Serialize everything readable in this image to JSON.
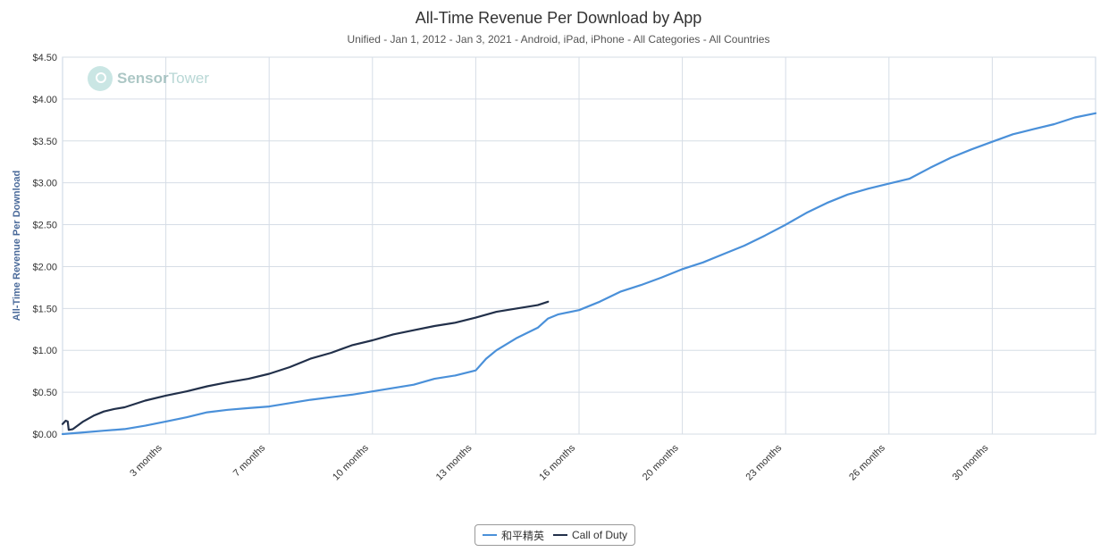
{
  "title": "All-Time Revenue Per Download by App",
  "subtitle": "Unified - Jan 1, 2012 - Jan 3, 2021 - Android, iPad, iPhone - All Categories - All Countries",
  "watermark": {
    "brand_bold": "Sensor",
    "brand_light": "Tower"
  },
  "chart_data": {
    "type": "line",
    "title": "All-Time Revenue Per Download by App",
    "ylabel": "All-Time Revenue Per Download",
    "xlabel": "",
    "ylim": [
      0,
      4.5
    ],
    "y_ticks": [
      "$0.00",
      "$0.50",
      "$1.00",
      "$1.50",
      "$2.00",
      "$2.50",
      "$3.00",
      "$3.50",
      "$4.00",
      "$4.50"
    ],
    "y_tick_values": [
      0,
      0.5,
      1.0,
      1.5,
      2.0,
      2.5,
      3.0,
      3.5,
      4.0,
      4.5
    ],
    "xlim": [
      0,
      100
    ],
    "x_ticks": [
      "3 months",
      "7 months",
      "10 months",
      "13 months",
      "16 months",
      "20 months",
      "23 months",
      "26 months",
      "30 months"
    ],
    "x_tick_values": [
      10,
      20,
      30,
      40,
      50,
      60,
      70,
      80,
      90
    ],
    "grid": true,
    "legend_position": "bottom-center",
    "series": [
      {
        "name": "和平精英",
        "color": "#4a90d9",
        "x": [
          0,
          2,
          4,
          6,
          8,
          10,
          12,
          14,
          16,
          18,
          20,
          22,
          24,
          26,
          28,
          30,
          32,
          34,
          36,
          38,
          40,
          41,
          42,
          44,
          46,
          47,
          48,
          50,
          52,
          54,
          56,
          58,
          60,
          62,
          64,
          66,
          68,
          70,
          72,
          74,
          76,
          78,
          80,
          82,
          84,
          86,
          88,
          90,
          92,
          94,
          96,
          98,
          100
        ],
        "values": [
          0.0,
          0.02,
          0.04,
          0.06,
          0.1,
          0.15,
          0.2,
          0.26,
          0.29,
          0.31,
          0.33,
          0.37,
          0.41,
          0.44,
          0.47,
          0.51,
          0.55,
          0.59,
          0.66,
          0.7,
          0.76,
          0.9,
          1.0,
          1.15,
          1.27,
          1.38,
          1.43,
          1.48,
          1.58,
          1.7,
          1.78,
          1.87,
          1.97,
          2.05,
          2.15,
          2.25,
          2.37,
          2.5,
          2.64,
          2.76,
          2.86,
          2.93,
          2.99,
          3.05,
          3.18,
          3.3,
          3.4,
          3.49,
          3.58,
          3.64,
          3.7,
          3.78,
          3.83
        ]
      },
      {
        "name": "Call of Duty",
        "color": "#22304a",
        "x": [
          0,
          0.3,
          0.5,
          0.6,
          1,
          2,
          3,
          4,
          5,
          6,
          8,
          10,
          12,
          14,
          16,
          18,
          20,
          22,
          24,
          26,
          28,
          30,
          32,
          34,
          36,
          38,
          40,
          42,
          44,
          46,
          47
        ],
        "values": [
          0.12,
          0.16,
          0.15,
          0.05,
          0.06,
          0.15,
          0.22,
          0.27,
          0.3,
          0.32,
          0.4,
          0.46,
          0.51,
          0.57,
          0.62,
          0.66,
          0.72,
          0.8,
          0.9,
          0.97,
          1.06,
          1.12,
          1.19,
          1.24,
          1.29,
          1.33,
          1.39,
          1.46,
          1.5,
          1.54,
          1.58
        ]
      }
    ]
  }
}
